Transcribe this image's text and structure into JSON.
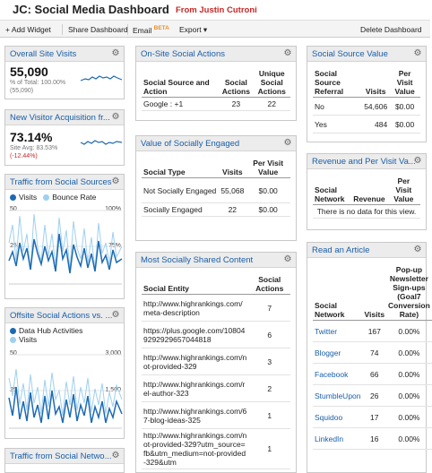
{
  "header": {
    "title": "JC: Social Media Dashboard",
    "subtitle": "From Justin Cutroni"
  },
  "toolbar": {
    "add_widget": "+ Add Widget",
    "share": "Share Dashboard",
    "email": "Email",
    "email_badge": "BETA",
    "export": "Export ▾",
    "delete": "Delete Dashboard"
  },
  "overall": {
    "title": "Overall Site Visits",
    "value": "55,090",
    "pct_label": "% of Total: 100.00%",
    "total": "(55,090)"
  },
  "newvisitor": {
    "title": "New Visitor Acquisition fr...",
    "value": "73.14%",
    "avg": "Site Avg: 83.53%",
    "delta": "(-12.44%)"
  },
  "traffic": {
    "title": "Traffic from Social Sources",
    "legend_visits": "Visits",
    "legend_bounce": "Bounce Rate",
    "y_left_top": "50",
    "y_left_mid": "25",
    "y_right_top": "100%",
    "y_right_mid": "75%",
    "colors": {
      "visits": "#1d6ab3",
      "bounce": "#9fd0ee"
    }
  },
  "offsite": {
    "title": "Offsite Social Actions vs. ...",
    "legend_hub": "Data Hub Activities",
    "legend_visits": "Visits",
    "y_left_top": "50",
    "y_left_mid": "25",
    "y_right_top": "3,000",
    "y_right_mid": "1,500"
  },
  "traffic_net": {
    "title": "Traffic from Social Netwo..."
  },
  "onsite": {
    "title": "On-Site Social Actions",
    "headers": [
      "Social Source and Action",
      "Social Actions",
      "Unique Social Actions"
    ],
    "rows": [
      [
        "Google : +1",
        "23",
        "22"
      ]
    ]
  },
  "engaged": {
    "title": "Value of Socially Engaged",
    "headers": [
      "Social Type",
      "Visits",
      "Per Visit Value"
    ],
    "rows": [
      [
        "Not Socially Engaged",
        "55,068",
        "$0.00"
      ],
      [
        "Socially Engaged",
        "22",
        "$0.00"
      ]
    ]
  },
  "shared": {
    "title": "Most Socially Shared Content",
    "headers": [
      "Social Entity",
      "Social Actions"
    ],
    "rows": [
      [
        "http://www.highrankings.com/meta-description",
        "7"
      ],
      [
        "https://plus.google.com/108049292929657044818",
        "6"
      ],
      [
        "http://www.highrankings.com/not-provided-329",
        "3"
      ],
      [
        "http://www.highrankings.com/rel-author-323",
        "2"
      ],
      [
        "http://www.highrankings.com/67-blog-ideas-325",
        "1"
      ],
      [
        "http://www.highrankings.com/not-provided-329?utm_source=fb&utm_medium=not-provided-329&utm",
        "1"
      ]
    ]
  },
  "sourcevalue": {
    "title": "Social Source Value",
    "headers": [
      "Social Source Referral",
      "Visits",
      "Per Visit Value"
    ],
    "rows": [
      [
        "No",
        "54,606",
        "$0.00"
      ],
      [
        "Yes",
        "484",
        "$0.00"
      ]
    ]
  },
  "revenue": {
    "title": "Revenue and Per Visit Va...",
    "headers": [
      "Social Network",
      "Revenue",
      "Per Visit Value"
    ],
    "nodata": "There is no data for this view."
  },
  "article": {
    "title": "Read an Article",
    "headers": [
      "Social Network",
      "Visits",
      "Pop-up Newsletter Sign-ups (Goal7 Conversion Rate)"
    ],
    "rows": [
      [
        "Twitter",
        "167",
        "0.00%"
      ],
      [
        "Blogger",
        "74",
        "0.00%"
      ],
      [
        "Facebook",
        "66",
        "0.00%"
      ],
      [
        "StumbleUpon",
        "26",
        "0.00%"
      ],
      [
        "Squidoo",
        "17",
        "0.00%"
      ],
      [
        "LinkedIn",
        "16",
        "0.00%"
      ]
    ]
  }
}
